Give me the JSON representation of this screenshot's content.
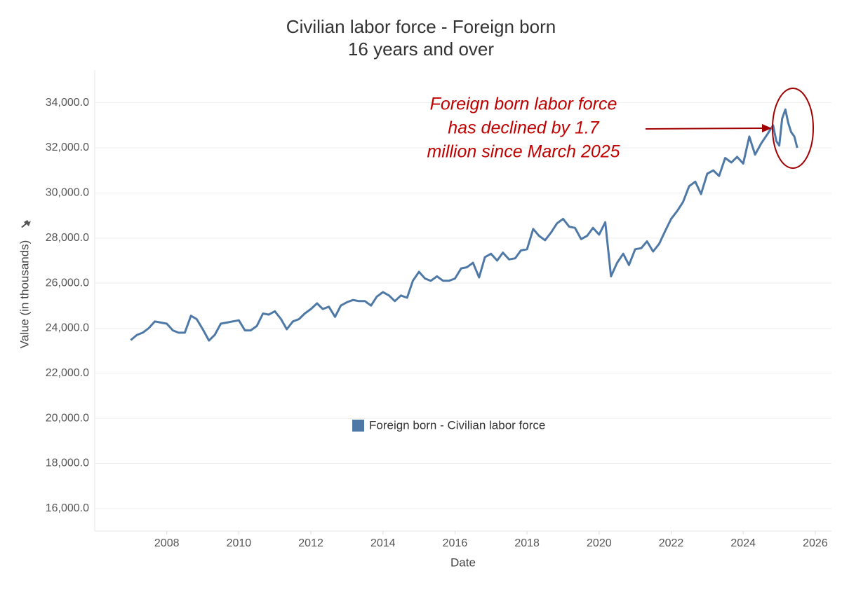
{
  "chart_data": {
    "type": "line",
    "title": [
      "Civilian labor force - Foreign born",
      "16 years and over"
    ],
    "y_label": "Value (in thousands)",
    "x_label": "Date",
    "annotation": [
      "Foreign born labor force",
      "has declined by 1.7",
      "million since March 2025"
    ],
    "grid": true,
    "legend": "center",
    "xlim": [
      2006.0,
      2026.45
    ],
    "ylim": [
      15000,
      35450
    ],
    "xticks": [
      2008,
      2010,
      2012,
      2014,
      2016,
      2018,
      2020,
      2022,
      2024,
      2026
    ],
    "yticks": [
      {
        "value": 16000,
        "label": "16,000.0"
      },
      {
        "value": 18000,
        "label": "18,000.0"
      },
      {
        "value": 20000,
        "label": "20,000.0"
      },
      {
        "value": 22000,
        "label": "22,000.0"
      },
      {
        "value": 24000,
        "label": "24,000.0"
      },
      {
        "value": 26000,
        "label": "26,000.0"
      },
      {
        "value": 28000,
        "label": "28,000.0"
      },
      {
        "value": 30000,
        "label": "30,000.0"
      },
      {
        "value": 32000,
        "label": "32,000.0"
      },
      {
        "value": 34000,
        "label": "34,000.0"
      }
    ],
    "x": [
      2007.0,
      2007.17,
      2007.33,
      2007.5,
      2007.67,
      2007.83,
      2008.0,
      2008.17,
      2008.33,
      2008.5,
      2008.67,
      2008.83,
      2009.0,
      2009.17,
      2009.33,
      2009.5,
      2009.67,
      2009.83,
      2010.0,
      2010.17,
      2010.33,
      2010.5,
      2010.67,
      2010.83,
      2011.0,
      2011.17,
      2011.33,
      2011.5,
      2011.67,
      2011.83,
      2012.0,
      2012.17,
      2012.33,
      2012.5,
      2012.67,
      2012.83,
      2013.0,
      2013.17,
      2013.33,
      2013.5,
      2013.67,
      2013.83,
      2014.0,
      2014.17,
      2014.33,
      2014.5,
      2014.67,
      2014.83,
      2015.0,
      2015.17,
      2015.33,
      2015.5,
      2015.67,
      2015.83,
      2016.0,
      2016.17,
      2016.33,
      2016.5,
      2016.67,
      2016.83,
      2017.0,
      2017.17,
      2017.33,
      2017.5,
      2017.67,
      2017.83,
      2018.0,
      2018.17,
      2018.33,
      2018.5,
      2018.67,
      2018.83,
      2019.0,
      2019.17,
      2019.33,
      2019.5,
      2019.67,
      2019.83,
      2020.0,
      2020.17,
      2020.33,
      2020.5,
      2020.67,
      2020.83,
      2021.0,
      2021.17,
      2021.33,
      2021.5,
      2021.67,
      2021.83,
      2022.0,
      2022.17,
      2022.33,
      2022.5,
      2022.67,
      2022.83,
      2023.0,
      2023.17,
      2023.33,
      2023.5,
      2023.67,
      2023.83,
      2024.0,
      2024.17,
      2024.33,
      2024.5,
      2024.67,
      2024.83,
      2024.92,
      2025.0,
      2025.08,
      2025.17,
      2025.25,
      2025.33,
      2025.42,
      2025.5
    ],
    "series": [
      {
        "name": "Foreign born - Civilian labor force",
        "color": "#4e79a7",
        "values": [
          23470,
          23700,
          23800,
          24000,
          24300,
          24250,
          24200,
          23900,
          23800,
          23800,
          24550,
          24400,
          23950,
          23450,
          23700,
          24200,
          24250,
          24300,
          24350,
          23900,
          23900,
          24100,
          24650,
          24600,
          24750,
          24400,
          23950,
          24300,
          24400,
          24650,
          24850,
          25100,
          24850,
          24950,
          24500,
          25000,
          25150,
          25250,
          25200,
          25200,
          25000,
          25400,
          25600,
          25450,
          25200,
          25450,
          25350,
          26100,
          26500,
          26200,
          26100,
          26300,
          26100,
          26100,
          26200,
          26650,
          26700,
          26900,
          26250,
          27150,
          27300,
          27000,
          27350,
          27050,
          27100,
          27450,
          27500,
          28400,
          28100,
          27900,
          28250,
          28650,
          28850,
          28500,
          28450,
          27950,
          28100,
          28450,
          28150,
          28700,
          26300,
          26900,
          27300,
          26800,
          27500,
          27550,
          27850,
          27400,
          27750,
          28300,
          28850,
          29200,
          29600,
          30300,
          30500,
          29950,
          30850,
          31000,
          30750,
          31550,
          31350,
          31600,
          31300,
          32500,
          31700,
          32200,
          32600,
          33000,
          32300,
          32100,
          33300,
          33700,
          33100,
          32700,
          32500,
          32000
        ]
      }
    ]
  }
}
